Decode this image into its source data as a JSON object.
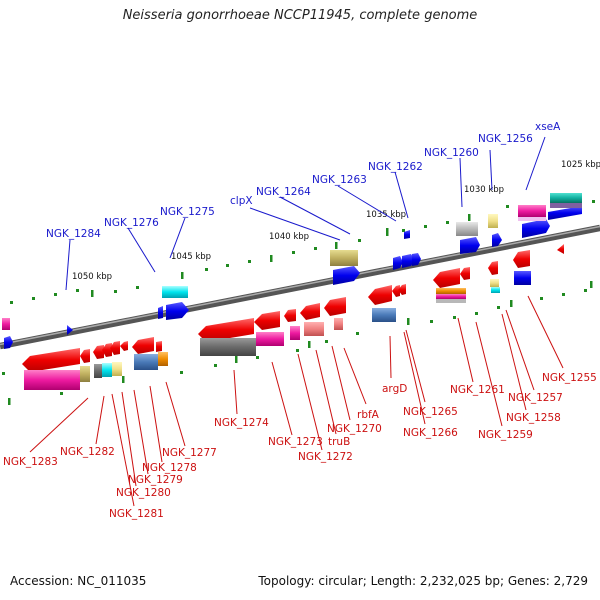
{
  "title": "Neisseria gonorrhoeae NCCP11945, complete genome",
  "footer": {
    "accession": "Accession: NC_011035",
    "summary": "Topology: circular; Length: 2,232,025 bp; Genes: 2,729"
  },
  "colors": {
    "forward_label": "#1a1acc",
    "reverse_label": "#cc1111",
    "backbone": "#888888"
  },
  "ticks": [
    "1025 kbp",
    "1030 kbp",
    "1035 kbp",
    "1040 kbp",
    "1045 kbp",
    "1050 kbp"
  ],
  "forward_genes": [
    "xseA",
    "NGK_1256",
    "NGK_1260",
    "NGK_1262",
    "NGK_1263",
    "NGK_1264",
    "clpX",
    "NGK_1275",
    "NGK_1276",
    "NGK_1284"
  ],
  "reverse_genes": [
    "NGK_1255",
    "NGK_1257",
    "NGK_1258",
    "NGK_1259",
    "NGK_1261",
    "NGK_1265",
    "NGK_1266",
    "argD",
    "rbfA",
    "NGK_1270",
    "truB",
    "NGK_1272",
    "NGK_1273",
    "NGK_1274",
    "NGK_1277",
    "NGK_1278",
    "NGK_1279",
    "NGK_1280",
    "NGK_1281",
    "NGK_1282",
    "NGK_1283"
  ]
}
